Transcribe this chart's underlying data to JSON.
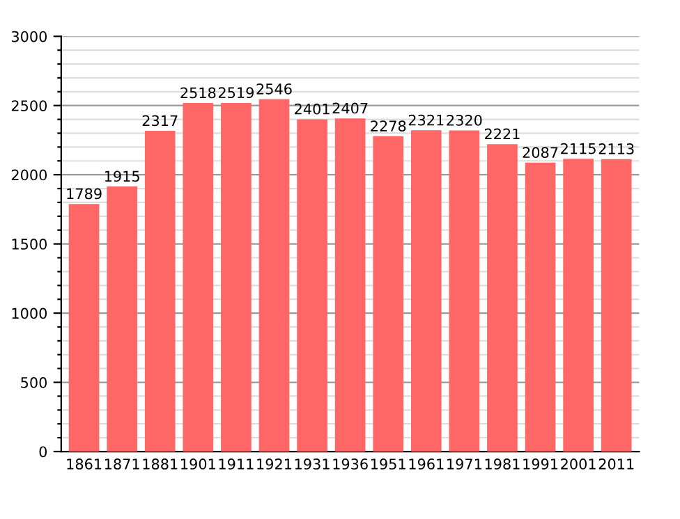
{
  "chart_data": {
    "type": "bar",
    "categories": [
      "1861",
      "1871",
      "1881",
      "1901",
      "1911",
      "1921",
      "1931",
      "1936",
      "1951",
      "1961",
      "1971",
      "1981",
      "1991",
      "2001",
      "2011"
    ],
    "values": [
      1789,
      1915,
      2317,
      2518,
      2519,
      2546,
      2401,
      2407,
      2278,
      2321,
      2320,
      2221,
      2087,
      2115,
      2113
    ],
    "color": "#ff6666",
    "data_labels": true,
    "grid": "y",
    "ylim": [
      0,
      3000
    ],
    "yticks": [
      0,
      {
        "value": 100,
        "label": null
      },
      {
        "value": 200,
        "label": null
      },
      {
        "value": 300,
        "label": null
      },
      {
        "value": 400,
        "label": null
      },
      500,
      {
        "value": 600,
        "label": null
      },
      {
        "value": 700,
        "label": null
      },
      {
        "value": 800,
        "label": null
      },
      {
        "value": 900,
        "label": null
      },
      1000,
      {
        "value": 1100,
        "label": null
      },
      {
        "value": 1200,
        "label": null
      },
      {
        "value": 1300,
        "label": null
      },
      {
        "value": 1400,
        "label": null
      },
      1500,
      {
        "value": 1600,
        "label": null
      },
      {
        "value": 1700,
        "label": null
      },
      {
        "value": 1800,
        "label": null
      },
      {
        "value": 1900,
        "label": null
      },
      2000,
      {
        "value": 2100,
        "label": null
      },
      {
        "value": 2200,
        "label": null
      },
      {
        "value": 2300,
        "label": null
      },
      {
        "value": 2400,
        "label": null
      },
      2500,
      {
        "value": 2600,
        "label": null
      },
      {
        "value": 2700,
        "label": null
      },
      {
        "value": 2800,
        "label": null
      },
      {
        "value": 2900,
        "label": null
      },
      3000
    ]
  }
}
